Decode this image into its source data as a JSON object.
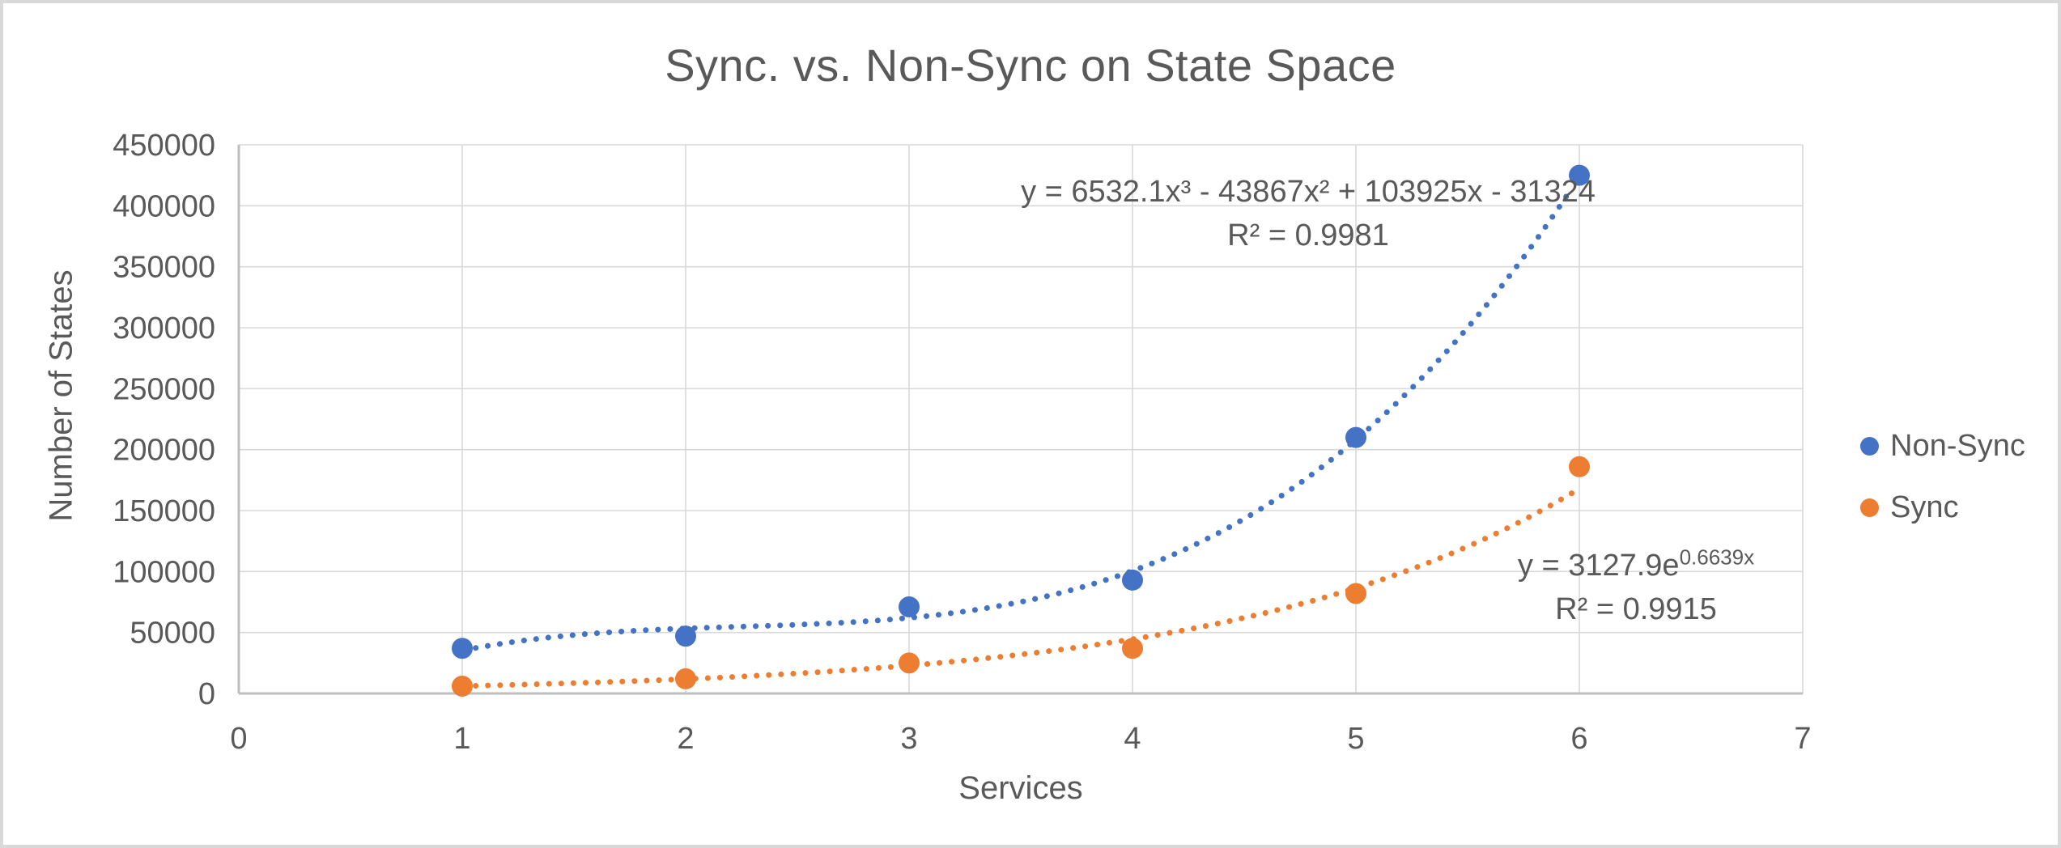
{
  "chart": {
    "title": "Sync. vs. Non-Sync on State Space",
    "x_axis": {
      "label": "Services",
      "ticks": [
        "0",
        "1",
        "2",
        "3",
        "4",
        "5",
        "6",
        "7"
      ]
    },
    "y_axis": {
      "label": "Number of States",
      "ticks": [
        "0",
        "50000",
        "100000",
        "150000",
        "200000",
        "250000",
        "300000",
        "350000",
        "400000",
        "450000"
      ]
    },
    "legend": [
      {
        "label": "Non-Sync",
        "color": "#4472C4"
      },
      {
        "label": "Sync",
        "color": "#ED7D31"
      }
    ],
    "colors": {
      "text": "#595959",
      "gridline": "#D9D9D9",
      "axis": "#BFBFBF",
      "background": "#FFFFFF"
    }
  },
  "chart_data": {
    "type": "scatter",
    "title": "Sync. vs. Non-Sync on State Space",
    "xlabel": "Services",
    "ylabel": "Number of States",
    "xlim": [
      0,
      7
    ],
    "ylim": [
      0,
      450000
    ],
    "grid": true,
    "legend_position": "right",
    "x": [
      1,
      2,
      3,
      4,
      5,
      6
    ],
    "series": [
      {
        "name": "Non-Sync",
        "color": "#4472C4",
        "marker": "circle",
        "values": [
          37000,
          47000,
          71000,
          93000,
          210000,
          425000
        ],
        "trendline": {
          "type": "polynomial",
          "order": 3,
          "style": "dotted",
          "coefficients": [
            6532.1,
            -43867,
            103925,
            -31324
          ],
          "equation": "y = 6532.1x³ - 43867x² + 103925x - 31324",
          "r_squared": "R² = 0.9981"
        }
      },
      {
        "name": "Sync",
        "color": "#ED7D31",
        "marker": "circle",
        "values": [
          6000,
          12000,
          25000,
          37000,
          82000,
          186000
        ],
        "trendline": {
          "type": "exponential",
          "style": "dotted",
          "a": 3127.9,
          "b": 0.6639,
          "equation_prefix": "y = 3127.9e",
          "equation_exponent": "0.6639x",
          "r_squared": "R² = 0.9915"
        }
      }
    ]
  }
}
